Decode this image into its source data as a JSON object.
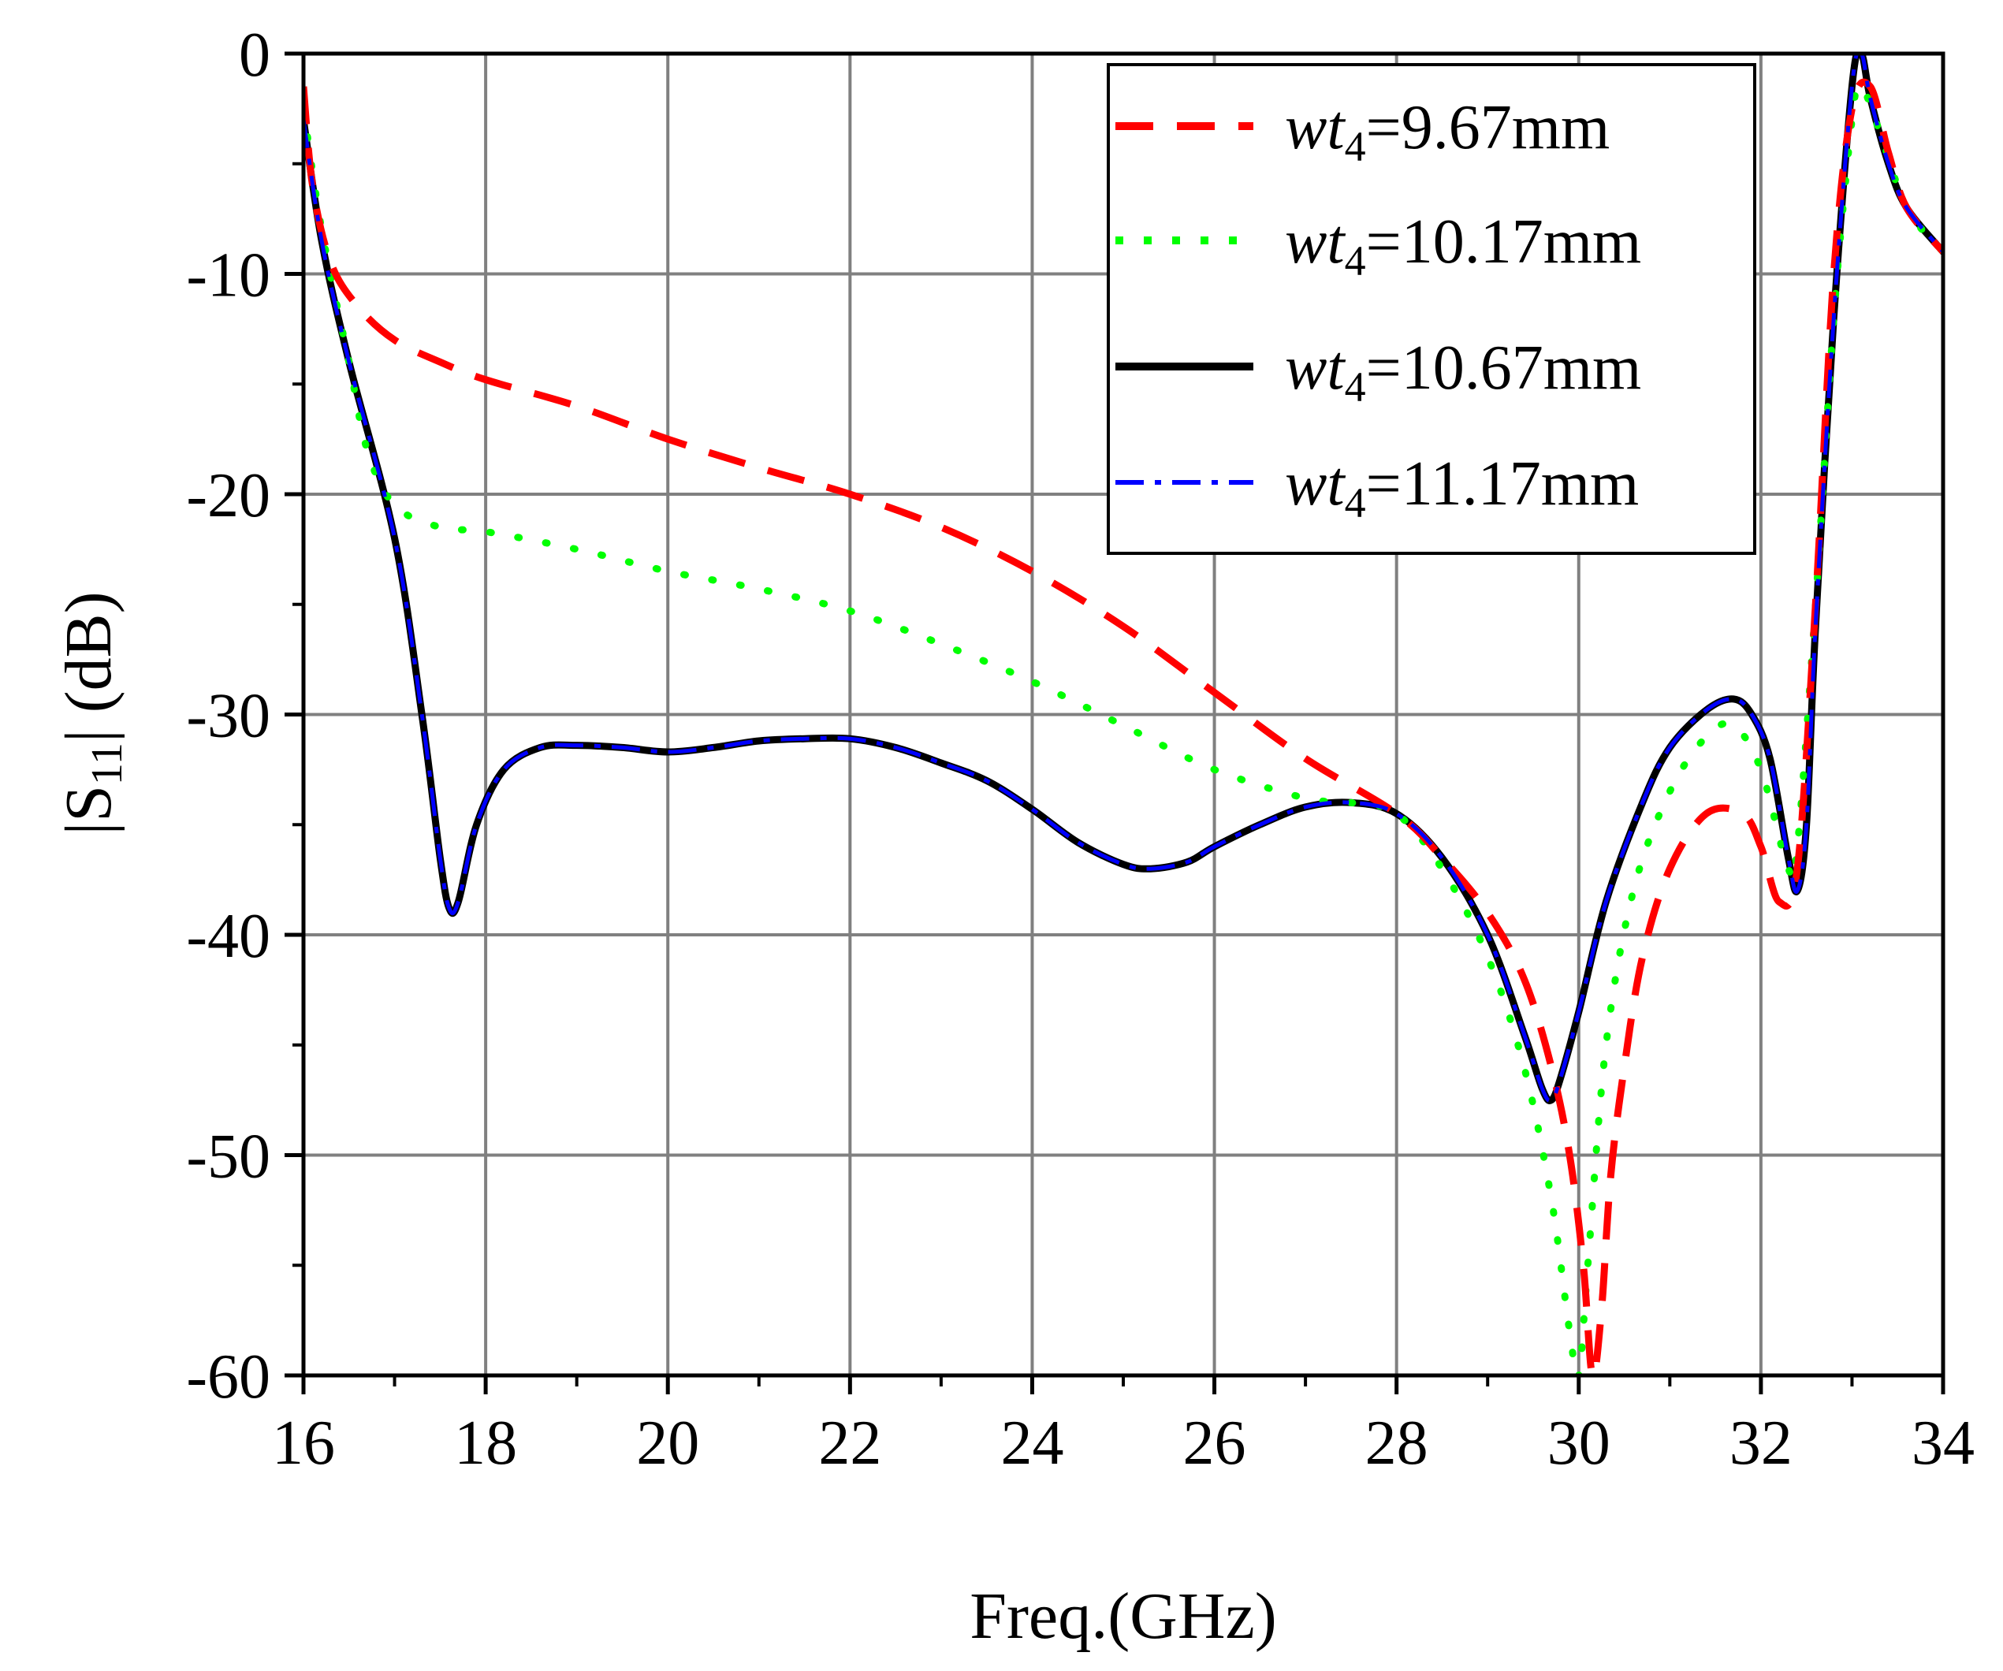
{
  "chart_data": {
    "type": "line",
    "title": "",
    "xlabel": "Freq.(GHz)",
    "ylabel": {
      "prefix": "|S",
      "sub": "11",
      "suffix": "| (dB)"
    },
    "xlim": [
      16,
      34
    ],
    "ylim": [
      -60,
      0
    ],
    "xticks": [
      16,
      18,
      20,
      22,
      24,
      26,
      28,
      30,
      32,
      34
    ],
    "yticks": [
      0,
      -10,
      -20,
      -30,
      -40,
      -50,
      -60
    ],
    "grid": true,
    "legend_position": "top-right",
    "series": [
      {
        "name_prefix": "wt",
        "name_sub": "4",
        "name_suffix": "=9.67mm",
        "color": "#ff0000",
        "style": "dashed",
        "points": [
          [
            16.0,
            -1.5
          ],
          [
            16.1,
            -6.0
          ],
          [
            16.3,
            -9.5
          ],
          [
            16.6,
            -11.5
          ],
          [
            17.0,
            -13.0
          ],
          [
            17.5,
            -14.0
          ],
          [
            18.0,
            -14.8
          ],
          [
            19.0,
            -16.0
          ],
          [
            20.0,
            -17.5
          ],
          [
            21.0,
            -18.8
          ],
          [
            22.0,
            -20.0
          ],
          [
            23.0,
            -21.5
          ],
          [
            24.0,
            -23.5
          ],
          [
            25.0,
            -26.0
          ],
          [
            26.0,
            -29.0
          ],
          [
            27.0,
            -32.0
          ],
          [
            28.0,
            -34.5
          ],
          [
            28.5,
            -36.5
          ],
          [
            29.0,
            -39.0
          ],
          [
            29.4,
            -42.0
          ],
          [
            29.7,
            -46.0
          ],
          [
            29.9,
            -50.0
          ],
          [
            30.05,
            -55.0
          ],
          [
            30.15,
            -60.0
          ],
          [
            30.25,
            -57.0
          ],
          [
            30.35,
            -51.0
          ],
          [
            30.5,
            -46.0
          ],
          [
            30.7,
            -41.0
          ],
          [
            31.0,
            -37.0
          ],
          [
            31.4,
            -34.5
          ],
          [
            31.8,
            -34.5
          ],
          [
            32.0,
            -36.0
          ],
          [
            32.2,
            -38.5
          ],
          [
            32.4,
            -37.0
          ],
          [
            32.6,
            -25.0
          ],
          [
            32.8,
            -10.0
          ],
          [
            33.0,
            -2.5
          ],
          [
            33.2,
            -1.5
          ],
          [
            33.4,
            -4.5
          ],
          [
            33.6,
            -7.0
          ],
          [
            34.0,
            -9.0
          ]
        ]
      },
      {
        "name_prefix": "wt",
        "name_sub": "4",
        "name_suffix": "=10.17mm",
        "color": "#00ff00",
        "style": "dotted",
        "points": [
          [
            16.0,
            -2.5
          ],
          [
            16.2,
            -8.0
          ],
          [
            16.5,
            -14.0
          ],
          [
            16.7,
            -18.0
          ],
          [
            17.0,
            -20.5
          ],
          [
            17.5,
            -21.5
          ],
          [
            18.0,
            -21.7
          ],
          [
            19.0,
            -22.5
          ],
          [
            20.0,
            -23.5
          ],
          [
            21.0,
            -24.3
          ],
          [
            22.0,
            -25.3
          ],
          [
            23.0,
            -26.8
          ],
          [
            24.0,
            -28.5
          ],
          [
            25.0,
            -30.5
          ],
          [
            26.0,
            -32.5
          ],
          [
            27.0,
            -33.8
          ],
          [
            27.5,
            -34.0
          ],
          [
            28.0,
            -34.5
          ],
          [
            28.5,
            -37.0
          ],
          [
            29.0,
            -41.0
          ],
          [
            29.4,
            -46.0
          ],
          [
            29.7,
            -52.0
          ],
          [
            29.9,
            -58.0
          ],
          [
            30.0,
            -60.0
          ],
          [
            30.1,
            -55.0
          ],
          [
            30.3,
            -45.0
          ],
          [
            30.6,
            -38.0
          ],
          [
            31.0,
            -33.5
          ],
          [
            31.4,
            -31.0
          ],
          [
            31.7,
            -30.5
          ],
          [
            32.0,
            -32.5
          ],
          [
            32.3,
            -37.0
          ],
          [
            32.4,
            -36.0
          ],
          [
            32.6,
            -25.0
          ],
          [
            32.8,
            -12.0
          ],
          [
            33.0,
            -3.0
          ],
          [
            33.1,
            -1.5
          ],
          [
            33.3,
            -3.5
          ],
          [
            33.6,
            -7.0
          ],
          [
            34.0,
            -9.0
          ]
        ]
      },
      {
        "name_prefix": "wt",
        "name_sub": "4",
        "name_suffix": "=10.67mm",
        "color": "#000000",
        "style": "solid",
        "points": [
          [
            16.0,
            -3.0
          ],
          [
            16.2,
            -8.5
          ],
          [
            16.5,
            -14.0
          ],
          [
            17.0,
            -22.0
          ],
          [
            17.3,
            -30.0
          ],
          [
            17.5,
            -36.5
          ],
          [
            17.6,
            -38.8
          ],
          [
            17.7,
            -38.5
          ],
          [
            17.9,
            -35.0
          ],
          [
            18.2,
            -32.5
          ],
          [
            18.6,
            -31.5
          ],
          [
            19.0,
            -31.4
          ],
          [
            19.5,
            -31.5
          ],
          [
            20.0,
            -31.7
          ],
          [
            20.5,
            -31.5
          ],
          [
            21.0,
            -31.2
          ],
          [
            21.5,
            -31.1
          ],
          [
            22.0,
            -31.1
          ],
          [
            22.5,
            -31.5
          ],
          [
            23.0,
            -32.2
          ],
          [
            23.5,
            -33.0
          ],
          [
            24.0,
            -34.3
          ],
          [
            24.5,
            -35.8
          ],
          [
            25.0,
            -36.8
          ],
          [
            25.3,
            -37.0
          ],
          [
            25.7,
            -36.7
          ],
          [
            26.0,
            -36.0
          ],
          [
            26.5,
            -35.0
          ],
          [
            27.0,
            -34.2
          ],
          [
            27.5,
            -34.0
          ],
          [
            28.0,
            -34.5
          ],
          [
            28.5,
            -36.5
          ],
          [
            29.0,
            -40.0
          ],
          [
            29.4,
            -44.5
          ],
          [
            29.6,
            -47.0
          ],
          [
            29.7,
            -47.5
          ],
          [
            29.8,
            -46.5
          ],
          [
            30.0,
            -43.5
          ],
          [
            30.3,
            -38.5
          ],
          [
            30.7,
            -34.0
          ],
          [
            31.0,
            -31.5
          ],
          [
            31.4,
            -29.8
          ],
          [
            31.7,
            -29.3
          ],
          [
            31.9,
            -30.0
          ],
          [
            32.1,
            -32.0
          ],
          [
            32.3,
            -36.5
          ],
          [
            32.4,
            -38.0
          ],
          [
            32.5,
            -35.0
          ],
          [
            32.6,
            -26.0
          ],
          [
            32.8,
            -12.0
          ],
          [
            33.0,
            -1.5
          ],
          [
            33.1,
            0.0
          ],
          [
            33.2,
            -2.0
          ],
          [
            33.4,
            -5.0
          ],
          [
            33.6,
            -7.0
          ],
          [
            34.0,
            -9.0
          ]
        ]
      },
      {
        "name_prefix": "wt",
        "name_sub": "4",
        "name_suffix": "=11.17mm",
        "color": "#0000ff",
        "style": "dashdot",
        "points": [
          [
            16.0,
            -3.0
          ],
          [
            16.2,
            -8.5
          ],
          [
            16.5,
            -14.0
          ],
          [
            17.0,
            -22.0
          ],
          [
            17.3,
            -30.0
          ],
          [
            17.5,
            -36.5
          ],
          [
            17.6,
            -38.8
          ],
          [
            17.7,
            -38.5
          ],
          [
            17.9,
            -35.0
          ],
          [
            18.2,
            -32.5
          ],
          [
            18.6,
            -31.5
          ],
          [
            19.0,
            -31.4
          ],
          [
            19.5,
            -31.5
          ],
          [
            20.0,
            -31.7
          ],
          [
            20.5,
            -31.5
          ],
          [
            21.0,
            -31.2
          ],
          [
            21.5,
            -31.1
          ],
          [
            22.0,
            -31.1
          ],
          [
            22.5,
            -31.5
          ],
          [
            23.0,
            -32.2
          ],
          [
            23.5,
            -33.0
          ],
          [
            24.0,
            -34.3
          ],
          [
            24.5,
            -35.8
          ],
          [
            25.0,
            -36.8
          ],
          [
            25.3,
            -37.0
          ],
          [
            25.7,
            -36.7
          ],
          [
            26.0,
            -36.0
          ],
          [
            26.5,
            -35.0
          ],
          [
            27.0,
            -34.2
          ],
          [
            27.5,
            -34.0
          ],
          [
            28.0,
            -34.5
          ],
          [
            28.5,
            -36.5
          ],
          [
            29.0,
            -40.0
          ],
          [
            29.4,
            -44.5
          ],
          [
            29.6,
            -47.0
          ],
          [
            29.7,
            -47.5
          ],
          [
            29.8,
            -46.5
          ],
          [
            30.0,
            -43.5
          ],
          [
            30.3,
            -38.5
          ],
          [
            30.7,
            -34.0
          ],
          [
            31.0,
            -31.5
          ],
          [
            31.4,
            -29.8
          ],
          [
            31.7,
            -29.3
          ],
          [
            31.9,
            -30.0
          ],
          [
            32.1,
            -32.0
          ],
          [
            32.3,
            -36.5
          ],
          [
            32.4,
            -38.0
          ],
          [
            32.5,
            -35.0
          ],
          [
            32.6,
            -26.0
          ],
          [
            32.8,
            -12.0
          ],
          [
            33.0,
            -1.5
          ],
          [
            33.1,
            0.0
          ],
          [
            33.2,
            -2.0
          ],
          [
            33.4,
            -5.0
          ],
          [
            33.6,
            -7.0
          ],
          [
            34.0,
            -9.0
          ]
        ]
      }
    ]
  }
}
